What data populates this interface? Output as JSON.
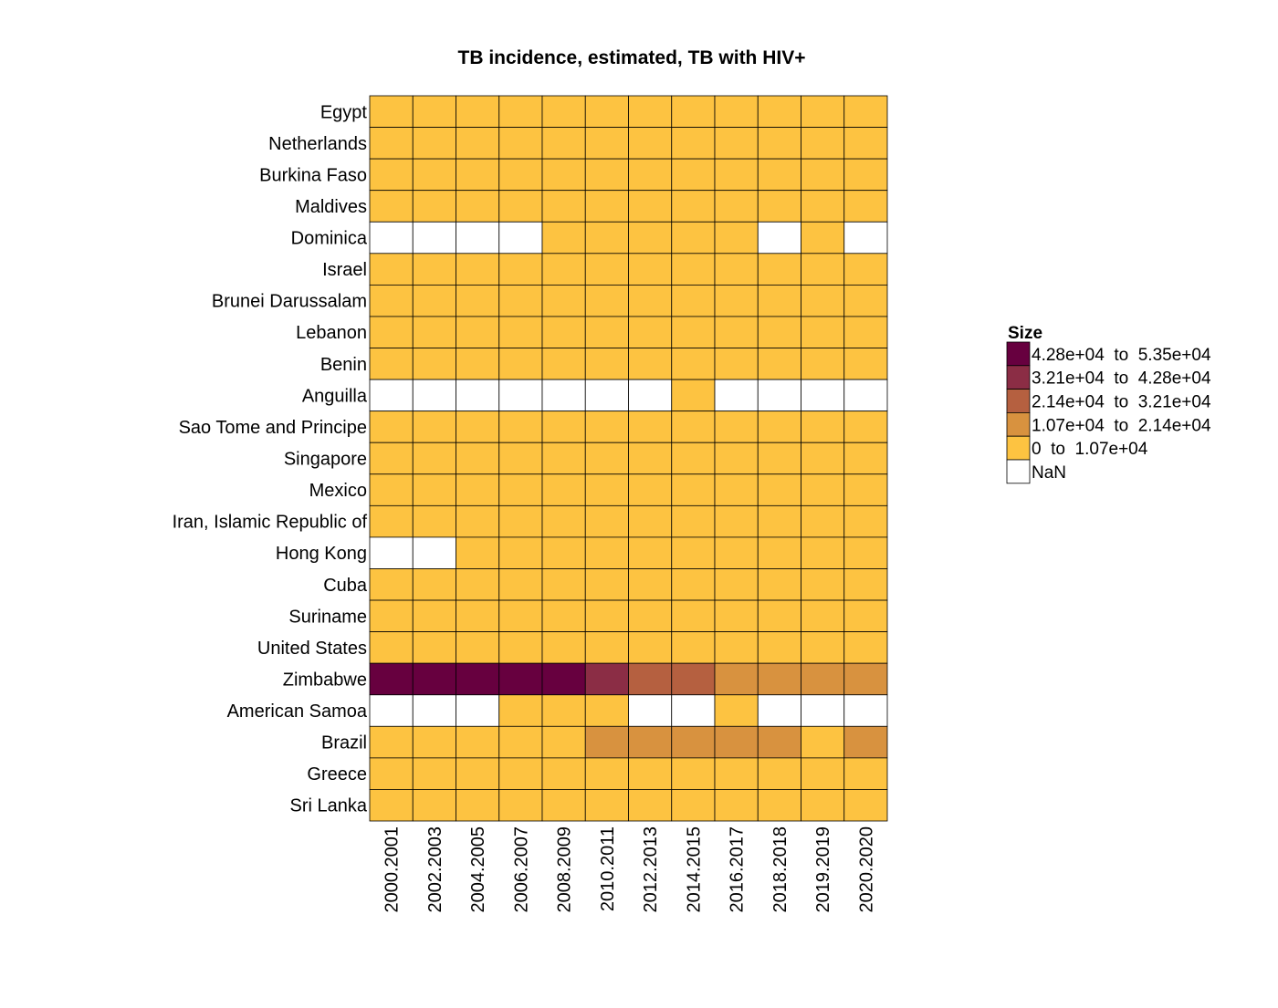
{
  "chart_data": {
    "type": "heatmap",
    "title": "TB incidence, estimated, TB with HIV+",
    "rows": [
      "Egypt",
      "Netherlands",
      "Burkina Faso",
      "Maldives",
      "Dominica",
      "Israel",
      "Brunei Darussalam",
      "Lebanon",
      "Benin",
      "Anguilla",
      "Sao Tome and Principe",
      "Singapore",
      "Mexico",
      "Iran, Islamic Republic of",
      "Hong Kong",
      "Cuba",
      "Suriname",
      "United States",
      "Zimbabwe",
      "American Samoa",
      "Brazil",
      "Greece",
      "Sri Lanka"
    ],
    "columns": [
      "2000.2001",
      "2002.2003",
      "2004.2005",
      "2006.2007",
      "2008.2009",
      "2010.2011",
      "2012.2013",
      "2014.2015",
      "2016.2017",
      "2018.2018",
      "2019.2019",
      "2020.2020"
    ],
    "legend": {
      "title": "Size",
      "position": "right",
      "bins": [
        {
          "label": "4.28e+04  to  5.35e+04",
          "color": "#67003f"
        },
        {
          "label": "3.21e+04  to  4.28e+04",
          "color": "#8b2d45"
        },
        {
          "label": "2.14e+04  to  3.21e+04",
          "color": "#b56040"
        },
        {
          "label": "1.07e+04  to  2.14e+04",
          "color": "#d8923f"
        },
        {
          "label": "0  to  1.07e+04",
          "color": "#fdc341"
        },
        {
          "label": "NaN",
          "color": "#ffffff"
        }
      ]
    },
    "cell_bins": [
      [
        4,
        4,
        4,
        4,
        4,
        4,
        4,
        4,
        4,
        4,
        4,
        4
      ],
      [
        4,
        4,
        4,
        4,
        4,
        4,
        4,
        4,
        4,
        4,
        4,
        4
      ],
      [
        4,
        4,
        4,
        4,
        4,
        4,
        4,
        4,
        4,
        4,
        4,
        4
      ],
      [
        4,
        4,
        4,
        4,
        4,
        4,
        4,
        4,
        4,
        4,
        4,
        4
      ],
      [
        5,
        5,
        5,
        5,
        4,
        4,
        4,
        4,
        4,
        5,
        4,
        5
      ],
      [
        4,
        4,
        4,
        4,
        4,
        4,
        4,
        4,
        4,
        4,
        4,
        4
      ],
      [
        4,
        4,
        4,
        4,
        4,
        4,
        4,
        4,
        4,
        4,
        4,
        4
      ],
      [
        4,
        4,
        4,
        4,
        4,
        4,
        4,
        4,
        4,
        4,
        4,
        4
      ],
      [
        4,
        4,
        4,
        4,
        4,
        4,
        4,
        4,
        4,
        4,
        4,
        4
      ],
      [
        5,
        5,
        5,
        5,
        5,
        5,
        5,
        4,
        5,
        5,
        5,
        5
      ],
      [
        4,
        4,
        4,
        4,
        4,
        4,
        4,
        4,
        4,
        4,
        4,
        4
      ],
      [
        4,
        4,
        4,
        4,
        4,
        4,
        4,
        4,
        4,
        4,
        4,
        4
      ],
      [
        4,
        4,
        4,
        4,
        4,
        4,
        4,
        4,
        4,
        4,
        4,
        4
      ],
      [
        4,
        4,
        4,
        4,
        4,
        4,
        4,
        4,
        4,
        4,
        4,
        4
      ],
      [
        5,
        5,
        4,
        4,
        4,
        4,
        4,
        4,
        4,
        4,
        4,
        4
      ],
      [
        4,
        4,
        4,
        4,
        4,
        4,
        4,
        4,
        4,
        4,
        4,
        4
      ],
      [
        4,
        4,
        4,
        4,
        4,
        4,
        4,
        4,
        4,
        4,
        4,
        4
      ],
      [
        4,
        4,
        4,
        4,
        4,
        4,
        4,
        4,
        4,
        4,
        4,
        4
      ],
      [
        0,
        0,
        0,
        0,
        0,
        1,
        2,
        2,
        3,
        3,
        3,
        3
      ],
      [
        5,
        5,
        5,
        4,
        4,
        4,
        5,
        5,
        4,
        5,
        5,
        5
      ],
      [
        4,
        4,
        4,
        4,
        4,
        3,
        3,
        3,
        3,
        3,
        4,
        3
      ],
      [
        4,
        4,
        4,
        4,
        4,
        4,
        4,
        4,
        4,
        4,
        4,
        4
      ],
      [
        4,
        4,
        4,
        4,
        4,
        4,
        4,
        4,
        4,
        4,
        4,
        4
      ]
    ]
  }
}
